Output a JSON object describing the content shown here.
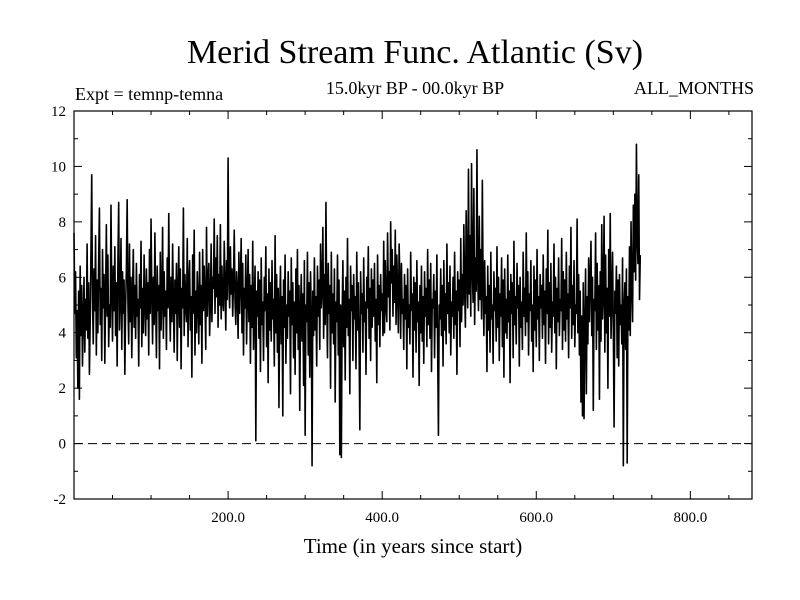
{
  "chart_data": {
    "type": "line",
    "title": "Merid Stream Func. Atlantic (Sv)",
    "subtitle": "15.0kyr BP - 00.0kyr BP",
    "experiment": "Expt = temnp-temna",
    "period": "ALL_MONTHS",
    "xlabel": "Time (in years since start)",
    "ylabel": "",
    "xlim": [
      0,
      880
    ],
    "ylim": [
      -2,
      12
    ],
    "x_ticks": [
      200,
      400,
      600,
      800
    ],
    "x_tick_labels": [
      "200.0",
      "400.0",
      "600.0",
      "800.0"
    ],
    "y_ticks": [
      -2,
      0,
      2,
      4,
      6,
      8,
      10,
      12
    ],
    "y_tick_labels": [
      "-2",
      "0",
      "2",
      "4",
      "6",
      "8",
      "10",
      "12"
    ],
    "reference_line": {
      "value": 0,
      "style": "dashed"
    },
    "series": [
      {
        "name": "Merid Stream Func. Atlantic",
        "x_start": 0,
        "x_step": 1,
        "values": [
          7.6,
          4.7,
          6.2,
          3.1,
          4.8,
          2.0,
          5.5,
          1.6,
          6.4,
          3.9,
          5.7,
          2.8,
          4.5,
          6.0,
          3.3,
          5.2,
          4.1,
          7.2,
          3.8,
          5.8,
          2.5,
          4.4,
          6.9,
          9.7,
          5.2,
          3.6,
          6.3,
          4.8,
          7.5,
          3.2,
          5.9,
          4.0,
          6.6,
          8.5,
          4.3,
          5.6,
          3.0,
          7.0,
          4.9,
          6.1,
          2.9,
          5.3,
          7.9,
          4.6,
          6.8,
          3.5,
          5.0,
          4.2,
          8.6,
          5.5,
          3.7,
          6.4,
          4.8,
          7.1,
          3.9,
          5.8,
          2.8,
          6.6,
          8.7,
          4.1,
          5.3,
          7.4,
          3.4,
          6.2,
          4.7,
          5.9,
          2.5,
          4.9,
          6.3,
          8.8,
          5.1,
          3.6,
          7.2,
          4.4,
          6.0,
          3.1,
          5.4,
          7.0,
          4.2,
          5.7,
          3.8,
          6.5,
          4.6,
          5.2,
          2.8,
          6.1,
          4.9,
          7.3,
          3.5,
          5.6,
          4.0,
          6.8,
          5.1,
          3.9,
          6.3,
          4.5,
          5.8,
          3.2,
          7.0,
          4.7,
          8.1,
          5.4,
          3.6,
          6.0,
          4.3,
          7.6,
          5.0,
          3.1,
          6.4,
          4.8,
          5.7,
          2.7,
          6.9,
          4.1,
          5.3,
          7.8,
          3.8,
          6.2,
          4.6,
          5.5,
          3.4,
          6.7,
          4.9,
          8.3,
          5.2,
          3.7,
          6.0,
          4.4,
          7.2,
          5.1,
          3.3,
          5.9,
          4.7,
          6.5,
          3.0,
          5.4,
          7.1,
          4.2,
          6.3,
          2.7,
          5.6,
          4.9,
          8.5,
          3.9,
          6.1,
          5.0,
          4.4,
          7.4,
          3.5,
          5.8,
          6.6,
          4.1,
          5.3,
          2.4,
          6.8,
          4.7,
          7.7,
          3.2,
          5.5,
          4.0,
          6.2,
          5.1,
          3.6,
          6.9,
          4.3,
          5.7,
          2.9,
          7.0,
          4.8,
          6.4,
          5.2,
          3.4,
          7.8,
          4.6,
          5.9,
          6.5,
          3.9,
          5.0,
          7.2,
          4.4,
          6.0,
          5.6,
          8.1,
          4.7,
          6.7,
          5.3,
          7.5,
          4.2,
          6.1,
          5.0,
          7.9,
          4.5,
          6.4,
          5.1,
          4.8,
          7.3,
          5.7,
          4.1,
          6.6,
          5.2,
          10.3,
          6.0,
          4.9,
          7.1,
          5.4,
          6.3,
          4.6,
          5.8,
          7.7,
          5.1,
          4.3,
          6.2,
          5.5,
          3.8,
          6.9,
          4.7,
          5.9,
          7.4,
          4.0,
          6.5,
          3.2,
          5.6,
          4.9,
          6.8,
          3.6,
          5.3,
          7.0,
          4.4,
          6.1,
          2.9,
          5.7,
          4.2,
          7.3,
          3.4,
          5.0,
          6.4,
          0.1,
          5.5,
          4.6,
          6.2,
          3.8,
          5.9,
          2.6,
          6.7,
          4.3,
          5.1,
          3.0,
          6.0,
          4.8,
          7.1,
          3.5,
          5.4,
          2.2,
          6.3,
          4.1,
          5.8,
          3.7,
          6.6,
          4.5,
          5.2,
          2.8,
          7.5,
          4.0,
          6.1,
          3.3,
          5.6,
          1.3,
          4.9,
          6.4,
          3.6,
          5.3,
          1.0,
          5.9,
          4.2,
          6.8,
          2.9,
          5.0,
          3.8,
          6.2,
          4.6,
          5.5,
          1.8,
          6.7,
          4.3,
          5.8,
          3.1,
          5.1,
          2.5,
          6.3,
          4.0,
          7.0,
          3.4,
          5.7,
          1.2,
          4.8,
          6.1,
          3.7,
          5.4,
          2.1,
          6.6,
          0.3,
          5.0,
          4.4,
          6.9,
          3.2,
          5.8,
          2.4,
          6.2,
          4.7,
          -0.8,
          5.5,
          3.9,
          6.7,
          4.1,
          5.3,
          2.8,
          6.4,
          4.6,
          5.9,
          3.4,
          7.2,
          4.9,
          5.6,
          7.8,
          3.8,
          6.1,
          4.3,
          8.7,
          5.2,
          3.1,
          6.5,
          4.7,
          5.7,
          2.0,
          6.9,
          4.0,
          5.4,
          3.6,
          6.3,
          1.5,
          5.1,
          4.4,
          6.8,
          3.2,
          5.9,
          -0.4,
          5.0,
          -0.5,
          4.6,
          6.6,
          3.5,
          5.5,
          2.3,
          6.0,
          4.2,
          7.4,
          3.9,
          5.2,
          1.8,
          6.4,
          4.8,
          5.7,
          3.0,
          6.1,
          4.5,
          5.3,
          2.7,
          6.9,
          4.1,
          5.8,
          3.6,
          0.5,
          6.2,
          4.7,
          5.4,
          3.3,
          6.7,
          4.4,
          5.1,
          2.5,
          6.0,
          4.9,
          7.1,
          3.8,
          5.6,
          3.0,
          6.3,
          4.2,
          5.9,
          4.6,
          6.5,
          3.7,
          5.2,
          2.2,
          6.8,
          4.3,
          5.7,
          3.5,
          6.1,
          4.8,
          5.4,
          3.9,
          7.3,
          4.0,
          6.6,
          5.0,
          4.4,
          7.6,
          5.3,
          6.2,
          4.1,
          8.0,
          5.8,
          7.0,
          4.6,
          6.4,
          5.1,
          7.7,
          4.3,
          6.8,
          5.5,
          4.0,
          7.2,
          5.9,
          3.8,
          6.5,
          4.7,
          5.2,
          3.4,
          6.1,
          4.5,
          5.7,
          2.7,
          6.3,
          4.2,
          5.0,
          3.6,
          6.9,
          4.8,
          5.4,
          2.4,
          6.0,
          4.1,
          5.8,
          3.3,
          6.6,
          4.4,
          5.1,
          2.1,
          5.7,
          4.0,
          6.4,
          3.7,
          5.3,
          2.9,
          6.2,
          4.6,
          5.6,
          3.5,
          7.0,
          4.3,
          5.9,
          3.8,
          6.5,
          2.6,
          5.2,
          4.9,
          6.1,
          3.1,
          5.5,
          4.2,
          6.8,
          3.4,
          0.3,
          5.0,
          4.5,
          6.3,
          3.9,
          5.7,
          2.8,
          6.6,
          4.1,
          5.4,
          3.6,
          7.2,
          4.7,
          5.8,
          4.0,
          6.4,
          3.2,
          5.1,
          4.6,
          6.0,
          3.8,
          6.9,
          4.3,
          5.5,
          2.5,
          6.2,
          4.8,
          5.9,
          3.5,
          7.4,
          4.4,
          6.1,
          5.0,
          7.9,
          5.6,
          4.2,
          8.4,
          6.0,
          4.9,
          9.9,
          5.4,
          7.5,
          4.6,
          10.1,
          6.3,
          5.1,
          9.2,
          4.3,
          6.7,
          5.5,
          10.6,
          6.0,
          4.8,
          8.2,
          5.2,
          7.0,
          4.5,
          9.5,
          5.8,
          3.9,
          6.6,
          4.7,
          5.3,
          2.6,
          6.4,
          4.1,
          5.7,
          3.3,
          6.9,
          4.5,
          5.0,
          2.9,
          6.2,
          4.8,
          5.6,
          3.7,
          7.1,
          4.2,
          6.0,
          3.0,
          5.4,
          4.6,
          6.7,
          3.5,
          5.9,
          2.4,
          6.3,
          4.0,
          5.2,
          3.8,
          6.8,
          4.4,
          5.5,
          2.2,
          6.1,
          4.7,
          5.8,
          3.1,
          7.3,
          4.3,
          5.3,
          3.6,
          6.5,
          4.9,
          5.7,
          2.8,
          6.0,
          4.2,
          5.1,
          3.4,
          6.9,
          4.6,
          5.6,
          3.9,
          7.6,
          4.4,
          6.2,
          3.2,
          5.4,
          4.8,
          6.6,
          3.7,
          5.0,
          2.6,
          6.4,
          4.1,
          5.9,
          3.5,
          7.0,
          4.5,
          5.3,
          3.0,
          6.1,
          4.9,
          5.7,
          3.8,
          6.8,
          4.3,
          5.5,
          2.9,
          6.3,
          4.7,
          7.7,
          3.6,
          5.8,
          4.2,
          6.5,
          3.3,
          5.1,
          4.6,
          7.2,
          4.0,
          6.0,
          2.7,
          5.6,
          4.4,
          6.7,
          3.9,
          5.2,
          4.8,
          7.4,
          3.4,
          6.2,
          4.1,
          5.9,
          3.7,
          6.9,
          4.5,
          5.4,
          3.1,
          6.4,
          4.9,
          7.8,
          3.8,
          5.7,
          4.3,
          6.6,
          3.5,
          5.0,
          4.7,
          8.1,
          4.0,
          6.1,
          3.2,
          5.5,
          1.5,
          4.6,
          1.0,
          5.8,
          0.9,
          4.2,
          6.3,
          1.8,
          5.3,
          3.6,
          6.7,
          4.4,
          5.9,
          7.3,
          3.9,
          6.0,
          1.2,
          5.2,
          4.8,
          7.6,
          3.4,
          6.5,
          4.1,
          5.7,
          1.6,
          6.2,
          3.7,
          7.9,
          4.5,
          5.4,
          8.2,
          3.3,
          6.8,
          4.0,
          5.6,
          2.0,
          7.0,
          4.6,
          8.3,
          3.8,
          5.1,
          6.9,
          4.2,
          0.6,
          5.5,
          4.7,
          6.4,
          3.1,
          5.9,
          2.8,
          6.1,
          4.3,
          5.0,
          3.6,
          6.7,
          -0.8,
          4.9,
          5.8,
          3.4,
          6.3,
          -0.7,
          5.3,
          4.1,
          7.1,
          3.9,
          8.0,
          5.6,
          4.4,
          8.6,
          6.2,
          9.0,
          5.9,
          10.8,
          7.4,
          6.5,
          9.7,
          5.2,
          6.8
        ]
      }
    ]
  }
}
